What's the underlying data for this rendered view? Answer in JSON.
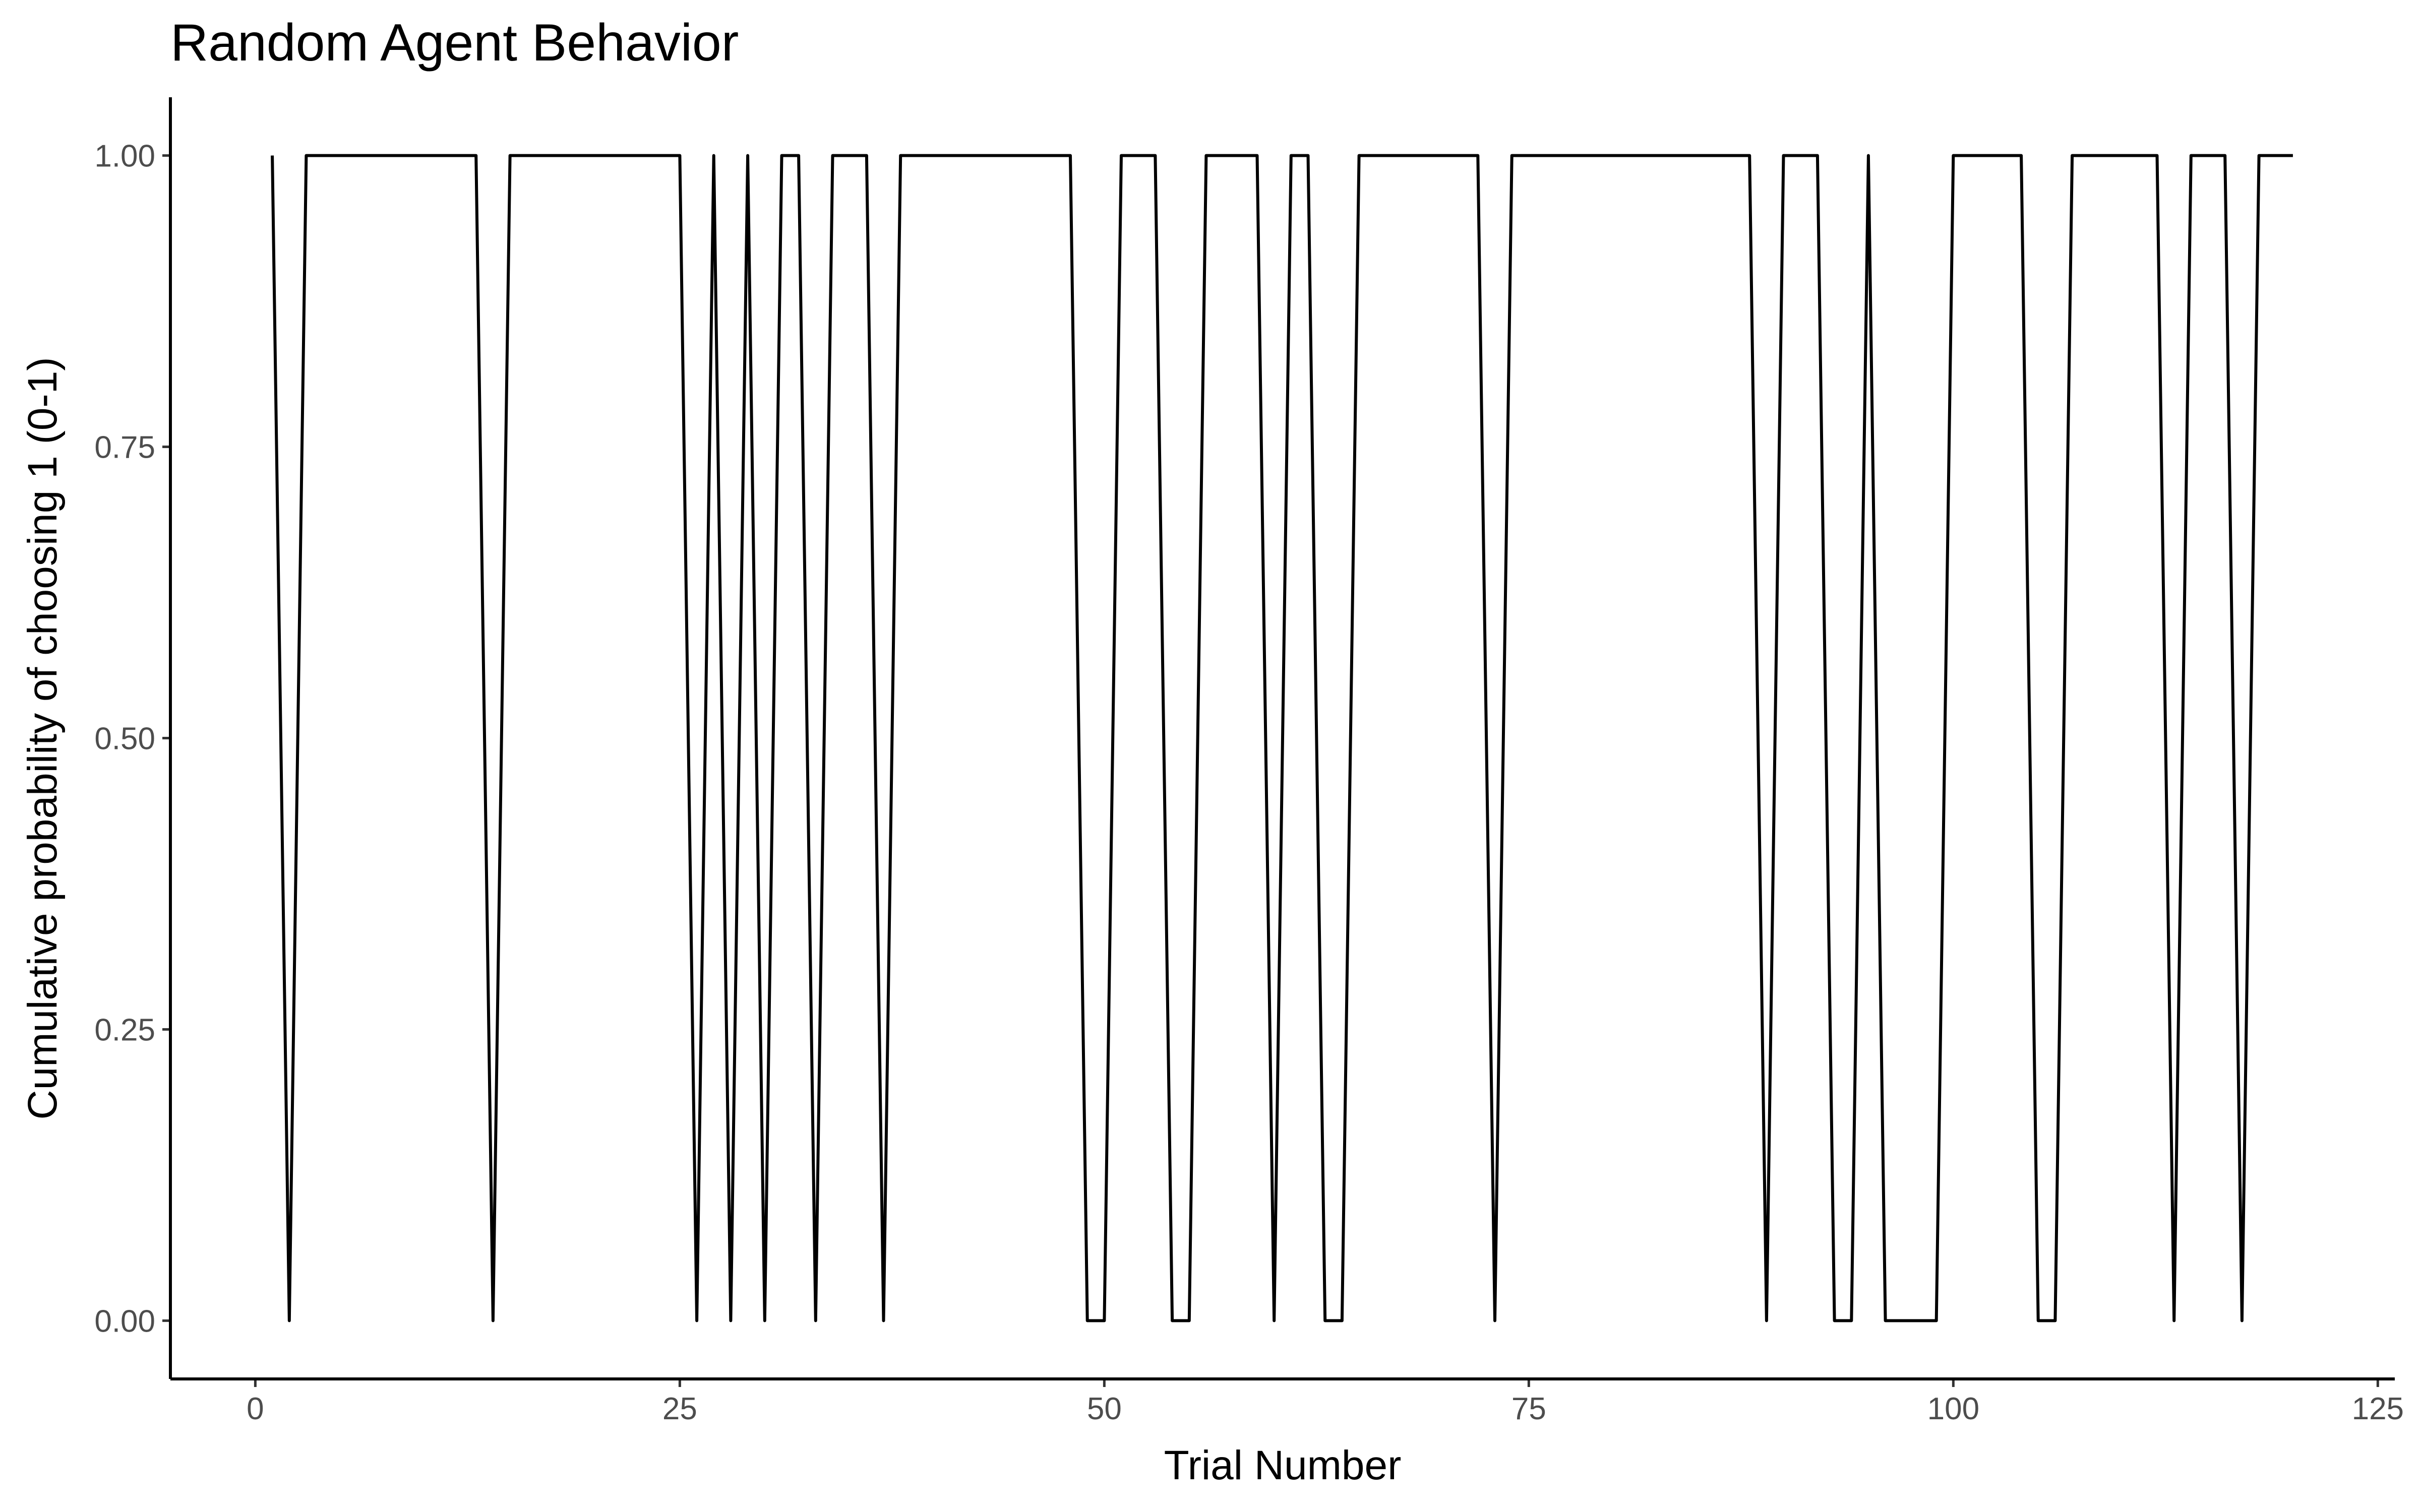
{
  "chart_data": {
    "type": "line",
    "title": "Random Agent Behavior",
    "xlabel": "Trial Number",
    "ylabel": "Cumulative probability of choosing 1 (0-1)",
    "xlim": [
      -5,
      126
    ],
    "ylim": [
      -0.05,
      1.05
    ],
    "x_ticks": [
      0,
      25,
      50,
      75,
      100,
      125
    ],
    "x_tick_labels": [
      "0",
      "25",
      "50",
      "75",
      "100",
      "125"
    ],
    "y_ticks": [
      0,
      0.25,
      0.5,
      0.75,
      1
    ],
    "y_tick_labels": [
      "0.00",
      "0.25",
      "0.50",
      "0.75",
      "1.00"
    ],
    "grid": false,
    "legend": "none",
    "series": [
      {
        "x": [
          1,
          2,
          3,
          4,
          5,
          6,
          7,
          8,
          9,
          10,
          11,
          12,
          13,
          14,
          15,
          16,
          17,
          18,
          19,
          20,
          21,
          22,
          23,
          24,
          25,
          26,
          27,
          28,
          29,
          30,
          31,
          32,
          33,
          34,
          35,
          36,
          37,
          38,
          39,
          40,
          41,
          42,
          43,
          44,
          45,
          46,
          47,
          48,
          49,
          50,
          51,
          52,
          53,
          54,
          55,
          56,
          57,
          58,
          59,
          60,
          61,
          62,
          63,
          64,
          65,
          66,
          67,
          68,
          69,
          70,
          71,
          72,
          73,
          74,
          75,
          76,
          77,
          78,
          79,
          80,
          81,
          82,
          83,
          84,
          85,
          86,
          87,
          88,
          89,
          90,
          91,
          92,
          93,
          94,
          95,
          96,
          97,
          98,
          99,
          100,
          101,
          102,
          103,
          104,
          105,
          106,
          107,
          108,
          109,
          110,
          111,
          112,
          113,
          114,
          115,
          116,
          117,
          118,
          119,
          120
        ],
        "y": [
          1,
          0,
          1,
          1,
          1,
          1,
          1,
          1,
          1,
          1,
          1,
          1,
          1,
          0,
          1,
          1,
          1,
          1,
          1,
          1,
          1,
          1,
          1,
          1,
          1,
          0,
          1,
          0,
          1,
          0,
          1,
          1,
          0,
          1,
          1,
          1,
          0,
          1,
          1,
          1,
          1,
          1,
          1,
          1,
          1,
          1,
          1,
          1,
          0,
          0,
          1,
          1,
          1,
          0,
          0,
          1,
          1,
          1,
          1,
          0,
          1,
          1,
          0,
          0,
          1,
          1,
          1,
          1,
          1,
          1,
          1,
          1,
          0,
          1,
          1,
          1,
          1,
          1,
          1,
          1,
          1,
          1,
          1,
          1,
          1,
          1,
          1,
          1,
          0,
          1,
          1,
          1,
          0,
          0,
          1,
          0,
          0,
          0,
          0,
          1,
          1,
          1,
          1,
          1,
          0,
          0,
          1,
          1,
          1,
          1,
          1,
          1,
          0,
          1,
          1,
          1,
          0,
          1,
          1,
          1
        ]
      }
    ]
  }
}
